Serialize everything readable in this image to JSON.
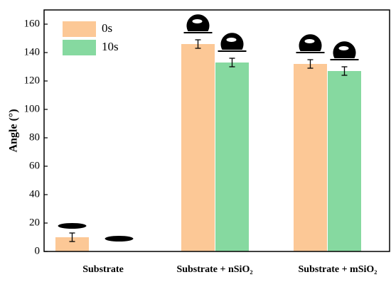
{
  "chart_data": {
    "type": "bar",
    "y_label": "Angle (°)",
    "categories": [
      "Substrate",
      "Substrate + nSiO₂",
      "Substrate + mSiO₂"
    ],
    "series": [
      {
        "name": "0s",
        "color": "#fcc896",
        "values": [
          10,
          146,
          132
        ],
        "errors": [
          3,
          3,
          3
        ]
      },
      {
        "name": "10s",
        "color": "#86d9a0",
        "values": [
          0,
          133,
          127
        ],
        "errors": [
          null,
          3,
          3
        ]
      }
    ],
    "ylim": [
      0,
      170
    ],
    "yticks": [
      0,
      20,
      40,
      60,
      80,
      100,
      120,
      140,
      160
    ]
  }
}
